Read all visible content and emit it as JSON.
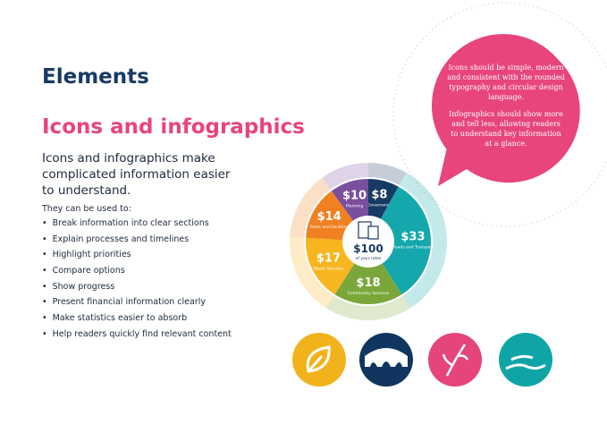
{
  "header": {
    "section": "Elements",
    "title": "Icons and infographics"
  },
  "intro": "Icons and infographics make complicated information easier to understand.",
  "list_heading": "They can be used to:",
  "bullets": [
    "Break information into clear sections",
    "Explain processes and timelines",
    "Highlight priorities",
    "Compare options",
    "Show progress",
    "Present financial information clearly",
    "Make statistics easier to absorb",
    "Help readers quickly find relevant content"
  ],
  "callout": [
    "Icons should be simple, modern and consistent with the rounded typography and circular design language.",
    "Infographics should show more and tell less, allowing readers to understand key information at a glance."
  ],
  "infographic": {
    "total_label": "$100",
    "total_caption": "of your rates",
    "segments": [
      {
        "name": "Governance",
        "value": 8,
        "value_label": "$8",
        "color": "#173a64"
      },
      {
        "name": "Roads and Transport",
        "value": 33,
        "value_label": "$33",
        "color": "#14a8ad"
      },
      {
        "name": "Community Services",
        "value": 18,
        "value_label": "$18",
        "color": "#7aa63a"
      },
      {
        "name": "Waste Services",
        "value": 17,
        "value_label": "$17",
        "color": "#f7b51f"
      },
      {
        "name": "Parks and Facilities",
        "value": 14,
        "value_label": "$14",
        "color": "#f08020"
      },
      {
        "name": "Planning",
        "value": 10,
        "value_label": "$10",
        "color": "#7a4f9e"
      }
    ]
  }
}
